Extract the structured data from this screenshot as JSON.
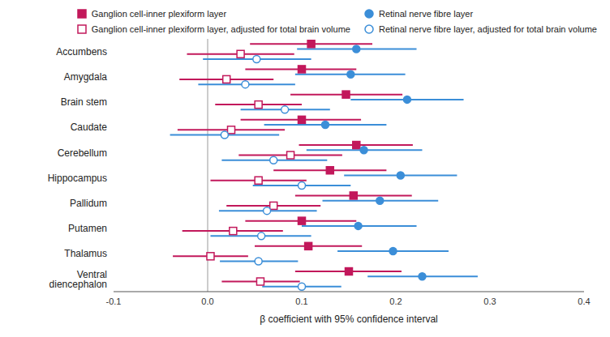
{
  "chart_data": {
    "type": "forest",
    "x_label": "β coefficient with 95% confidence interval",
    "categories": [
      "Accumbens",
      "Amygdala",
      "Brain stem",
      "Caudate",
      "Cerebellum",
      "Hippocampus",
      "Pallidum",
      "Putamen",
      "Thalamus",
      "Ventral diencephalon"
    ],
    "series": [
      {
        "name": "Ganglion cell-inner plexiform layer",
        "color": "#c2185b",
        "marker": "square",
        "values": [
          0.11,
          0.1,
          0.147,
          0.1,
          0.158,
          0.13,
          0.155,
          0.1,
          0.107,
          0.15
        ],
        "ci_low": [
          0.045,
          0.04,
          0.088,
          0.035,
          0.097,
          0.07,
          0.093,
          0.04,
          0.05,
          0.093
        ],
        "ci_high": [
          0.175,
          0.158,
          0.207,
          0.163,
          0.218,
          0.19,
          0.217,
          0.158,
          0.164,
          0.206
        ]
      },
      {
        "name": "Retinal nerve fibre layer",
        "color": "#3b8ed8",
        "marker": "circle",
        "values": [
          0.158,
          0.152,
          0.212,
          0.125,
          0.166,
          0.205,
          0.183,
          0.16,
          0.197,
          0.228
        ],
        "ci_low": [
          0.095,
          0.093,
          0.152,
          0.06,
          0.105,
          0.145,
          0.122,
          0.1,
          0.138,
          0.17
        ],
        "ci_high": [
          0.222,
          0.21,
          0.272,
          0.19,
          0.228,
          0.265,
          0.245,
          0.222,
          0.256,
          0.287
        ]
      },
      {
        "name": "Ganglion cell-inner plexiform layer, adjusted for total brain volume",
        "color": "#c2185b",
        "marker": "open_square",
        "values": [
          0.035,
          0.02,
          0.054,
          0.025,
          0.088,
          0.054,
          0.07,
          0.027,
          0.003,
          0.056
        ],
        "ci_low": [
          -0.022,
          -0.03,
          0.008,
          -0.032,
          0.033,
          0.003,
          0.02,
          -0.027,
          -0.037,
          0.015
        ],
        "ci_high": [
          0.092,
          0.07,
          0.1,
          0.082,
          0.143,
          0.105,
          0.12,
          0.08,
          0.043,
          0.098
        ]
      },
      {
        "name": "Retinal nerve fibre layer, adjusted for total brain volume",
        "color": "#3b8ed8",
        "marker": "open_circle",
        "values": [
          0.052,
          0.04,
          0.082,
          0.018,
          0.07,
          0.1,
          0.063,
          0.057,
          0.054,
          0.1
        ],
        "ci_low": [
          -0.005,
          -0.01,
          0.035,
          -0.04,
          0.015,
          0.048,
          0.012,
          0.003,
          0.013,
          0.058
        ],
        "ci_high": [
          0.11,
          0.093,
          0.13,
          0.076,
          0.127,
          0.152,
          0.116,
          0.11,
          0.096,
          0.142
        ]
      }
    ],
    "reference_line": 0,
    "xlim": [
      -0.1,
      0.4
    ],
    "xticks": [
      -0.1,
      {
        "value": 0,
        "label": "0.0"
      },
      0.1,
      0.2,
      0.3,
      0.4
    ],
    "grid": false,
    "legend": "top right"
  }
}
